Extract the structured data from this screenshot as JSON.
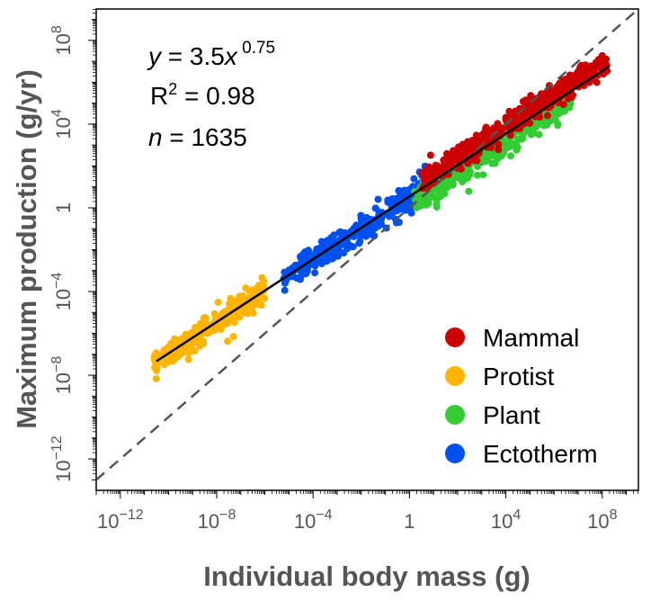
{
  "chart_data": {
    "type": "scatter",
    "title": "",
    "xlabel": "Individual body mass  (g)",
    "ylabel": "Maximum production  (g/yr)",
    "log_scale": true,
    "xlim_log10": [
      -13,
      9.5
    ],
    "ylim_log10": [
      -13.5,
      9.5
    ],
    "x_ticks": [
      {
        "base": "10",
        "exp": "−12"
      },
      {
        "base": "10",
        "exp": "−8"
      },
      {
        "base": "10",
        "exp": "−4"
      },
      {
        "base": "1",
        "exp": ""
      },
      {
        "base": "10",
        "exp": "4"
      },
      {
        "base": "10",
        "exp": "8"
      }
    ],
    "y_ticks": [
      {
        "base": "10",
        "exp": "−12"
      },
      {
        "base": "10",
        "exp": "−8"
      },
      {
        "base": "10",
        "exp": "−4"
      },
      {
        "base": "1",
        "exp": ""
      },
      {
        "base": "10",
        "exp": "4"
      },
      {
        "base": "10",
        "exp": "8"
      }
    ],
    "grid": false,
    "legend_position": "bottom-right",
    "annotation": {
      "eq_y": "y",
      "eq_mid": " = 3.5",
      "eq_x": "x",
      "eq_exp": " 0.75",
      "r2_base": "R",
      "r2_sup": "2",
      "r2_rest": " = 0.98",
      "n_label": "n",
      "n_rest": " = 1635"
    },
    "fit_line": {
      "a": 3.5,
      "b": 0.75,
      "x_range_log10": [
        -10.5,
        8.3
      ],
      "color": "#000000"
    },
    "reference_line": {
      "slope": 1,
      "intercept": 0,
      "style": "dashed",
      "color": "#555555"
    },
    "series": [
      {
        "name": "Mammal",
        "color": "#cc0000",
        "log10_mass_range": [
          0.5,
          8.2
        ],
        "count": 520
      },
      {
        "name": "Protist",
        "color": "#ffb400",
        "log10_mass_range": [
          -10.6,
          -6.0
        ],
        "count": 260
      },
      {
        "name": "Plant",
        "color": "#33cc33",
        "log10_mass_range": [
          0.2,
          6.8
        ],
        "count": 300
      },
      {
        "name": "Ectotherm",
        "color": "#0050f0",
        "log10_mass_range": [
          -5.3,
          4.2
        ],
        "count": 555
      }
    ]
  }
}
